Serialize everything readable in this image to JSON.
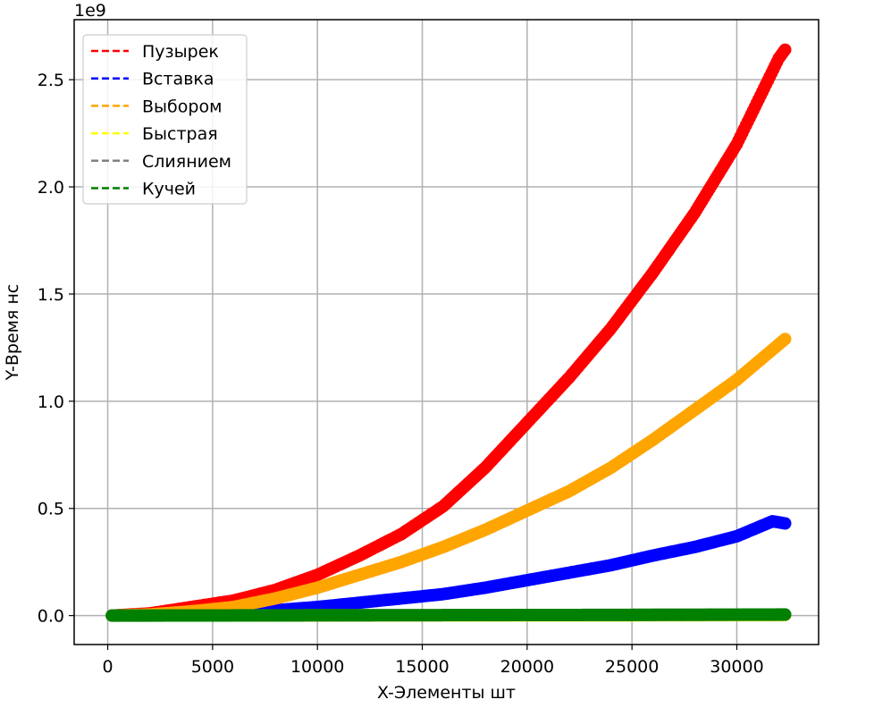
{
  "chart_data": {
    "type": "scatter",
    "title": "",
    "xlabel": "X-Элементы шт",
    "ylabel": "Y-Время нс",
    "y_multiplier": "1e9",
    "xlim": [
      -1600,
      33900
    ],
    "ylim": [
      -0.135,
      2.78
    ],
    "xticks": [
      0,
      5000,
      10000,
      15000,
      20000,
      25000,
      30000
    ],
    "xtick_labels": [
      "0",
      "5000",
      "10000",
      "15000",
      "20000",
      "25000",
      "30000"
    ],
    "yticks": [
      0.0,
      0.5,
      1.0,
      1.5,
      2.0,
      2.5
    ],
    "ytick_labels": [
      "0.0",
      "0.5",
      "1.0",
      "1.5",
      "2.0",
      "2.5"
    ],
    "grid": true,
    "legend_position": "top-left",
    "series": [
      {
        "name": "Пузырек",
        "color": "#ff0000",
        "x": [
          200,
          2000,
          4000,
          6000,
          8000,
          10000,
          12000,
          14000,
          16000,
          18000,
          20000,
          22000,
          24000,
          26000,
          28000,
          30000,
          32000,
          32300
        ],
        "y": [
          0.0,
          0.01,
          0.04,
          0.07,
          0.12,
          0.19,
          0.28,
          0.38,
          0.51,
          0.69,
          0.9,
          1.11,
          1.34,
          1.6,
          1.88,
          2.2,
          2.6,
          2.64
        ]
      },
      {
        "name": "Вставка",
        "color": "#0000ff",
        "x": [
          200,
          2000,
          4000,
          6000,
          8000,
          10000,
          12000,
          14000,
          16000,
          18000,
          20000,
          22000,
          24000,
          26000,
          28000,
          30000,
          31700,
          32300
        ],
        "y": [
          0.0,
          0.0,
          0.01,
          0.015,
          0.025,
          0.04,
          0.06,
          0.08,
          0.1,
          0.13,
          0.165,
          0.2,
          0.235,
          0.28,
          0.32,
          0.37,
          0.44,
          0.43
        ]
      },
      {
        "name": "Выбором",
        "color": "#ffa500",
        "x": [
          200,
          2000,
          4000,
          6000,
          8000,
          10000,
          12000,
          14000,
          16000,
          18000,
          20000,
          22000,
          24000,
          26000,
          28000,
          30000,
          32300
        ],
        "y": [
          0.0,
          0.005,
          0.02,
          0.04,
          0.08,
          0.13,
          0.19,
          0.25,
          0.32,
          0.4,
          0.49,
          0.58,
          0.69,
          0.82,
          0.96,
          1.1,
          1.29
        ]
      },
      {
        "name": "Быстрая",
        "color": "#ffff00",
        "x": [
          200,
          8000,
          16000,
          24000,
          32300
        ],
        "y": [
          0.0,
          0.0,
          0.001,
          0.001,
          0.002
        ]
      },
      {
        "name": "Слиянием",
        "color": "#808080",
        "x": [
          200,
          8000,
          16000,
          24000,
          32300
        ],
        "y": [
          0.0,
          0.001,
          0.002,
          0.003,
          0.004
        ]
      },
      {
        "name": "Кучей",
        "color": "#008000",
        "x": [
          200,
          8000,
          16000,
          24000,
          32300
        ],
        "y": [
          0.0,
          0.001,
          0.002,
          0.003,
          0.005
        ]
      }
    ]
  }
}
